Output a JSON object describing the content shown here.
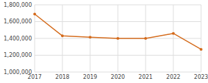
{
  "chart_data": {
    "type": "line",
    "x": [
      2017,
      2018,
      2019,
      2020,
      2021,
      2022,
      2023
    ],
    "values": [
      1690000,
      1430000,
      1415000,
      1400000,
      1400000,
      1460000,
      1270000
    ],
    "color": "#D46A1A",
    "marker": "circle",
    "xlim": [
      2017,
      2023
    ],
    "xticks": [
      2017,
      2018,
      2019,
      2020,
      2021,
      2022,
      2023
    ],
    "ylim": [
      1000000,
      1800000
    ],
    "yticks": [
      {
        "value": 1000000,
        "label": "1,000,000"
      },
      {
        "value": 1200000,
        "label": "1,200,000"
      },
      {
        "value": 1400000,
        "label": "1,400,000"
      },
      {
        "value": 1600000,
        "label": "1,600,000"
      },
      {
        "value": 1800000,
        "label": "1,800,000"
      }
    ],
    "grid": true
  }
}
